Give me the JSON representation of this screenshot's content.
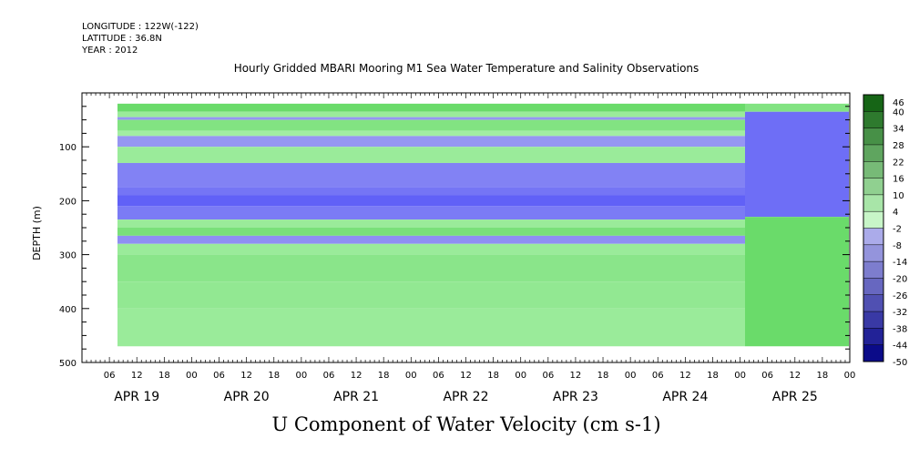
{
  "header": {
    "longitude": "LONGITUDE : 122W(-122)",
    "latitude": "LATITUDE : 36.8N",
    "year": "YEAR : 2012"
  },
  "chart_data": {
    "type": "heatmap",
    "title": "Hourly Gridded MBARI Mooring M1 Sea Water Temperature and Salinity Observations",
    "xlabel": "U Component of Water Velocity (cm s-1)",
    "ylabel": "DEPTH (m)",
    "ylim": [
      500,
      0
    ],
    "y_ticks": [
      100,
      200,
      300,
      400,
      500
    ],
    "x_day_labels": [
      "APR 19",
      "APR 20",
      "APR 21",
      "APR 22",
      "APR 23",
      "APR 24",
      "APR 25"
    ],
    "x_hour_labels": [
      "06",
      "12",
      "18",
      "00",
      "06",
      "12",
      "18",
      "00",
      "06",
      "12",
      "18",
      "00",
      "06",
      "12",
      "18",
      "00",
      "06",
      "12",
      "18",
      "00",
      "06",
      "12",
      "18",
      "00",
      "06",
      "12",
      "18",
      "00"
    ],
    "colorbar_levels": [
      46,
      40,
      34,
      28,
      22,
      16,
      10,
      4,
      -2,
      -8,
      -14,
      -20,
      -26,
      -32,
      -38,
      -44,
      -50
    ],
    "colorbar_range": [
      -50,
      46
    ],
    "bands_before_apr25": [
      {
        "depth_top": 20,
        "depth_bottom": 35,
        "value": 16
      },
      {
        "depth_top": 35,
        "depth_bottom": 45,
        "value": 4
      },
      {
        "depth_top": 45,
        "depth_bottom": 50,
        "value": -6
      },
      {
        "depth_top": 50,
        "depth_bottom": 70,
        "value": 10
      },
      {
        "depth_top": 70,
        "depth_bottom": 80,
        "value": 2
      },
      {
        "depth_top": 80,
        "depth_bottom": 100,
        "value": -6
      },
      {
        "depth_top": 100,
        "depth_bottom": 130,
        "value": 4
      },
      {
        "depth_top": 130,
        "depth_bottom": 175,
        "value": -12
      },
      {
        "depth_top": 175,
        "depth_bottom": 190,
        "value": -16
      },
      {
        "depth_top": 190,
        "depth_bottom": 210,
        "value": -22
      },
      {
        "depth_top": 210,
        "depth_bottom": 235,
        "value": -14
      },
      {
        "depth_top": 235,
        "depth_bottom": 250,
        "value": 4
      },
      {
        "depth_top": 250,
        "depth_bottom": 265,
        "value": 12
      },
      {
        "depth_top": 265,
        "depth_bottom": 280,
        "value": -8
      },
      {
        "depth_top": 280,
        "depth_bottom": 300,
        "value": 4
      },
      {
        "depth_top": 300,
        "depth_bottom": 350,
        "value": 8
      },
      {
        "depth_top": 350,
        "depth_bottom": 400,
        "value": 6
      },
      {
        "depth_top": 400,
        "depth_bottom": 470,
        "value": 4
      }
    ],
    "blocks_apr25": [
      {
        "depth_top": 20,
        "depth_bottom": 35,
        "value": 10
      },
      {
        "depth_top": 35,
        "depth_bottom": 230,
        "value": -18
      },
      {
        "depth_top": 230,
        "depth_bottom": 470,
        "value": 16
      }
    ],
    "colors": {
      "positive": "#33cc33",
      "near_zero": "#aaf0aa",
      "negative": "#8c8cf0"
    }
  }
}
